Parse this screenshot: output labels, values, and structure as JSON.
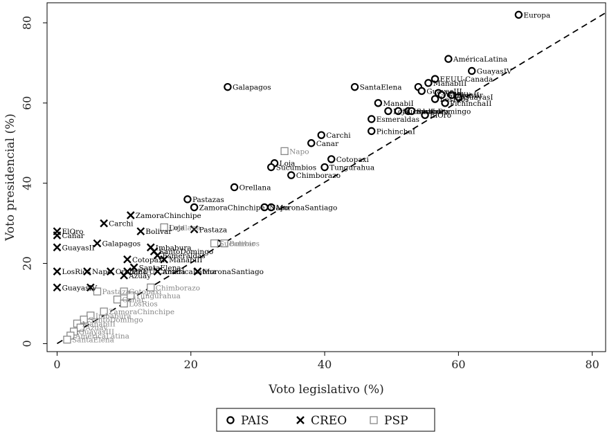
{
  "chart_data": {
    "type": "scatter",
    "xlabel": "Voto legislativo (%)",
    "ylabel": "Voto presidencial (%)",
    "xlim": [
      -1.5,
      82
    ],
    "ylim": [
      -2,
      85
    ],
    "xticks": [
      0,
      20,
      40,
      60,
      80
    ],
    "yticks": [
      0,
      20,
      40,
      60,
      80
    ],
    "grid": false,
    "legend_position": "bottom",
    "reference_line": {
      "style": "dashed",
      "from": [
        0,
        0
      ],
      "to": [
        82,
        82.5
      ]
    },
    "series": [
      {
        "name": "PAIS",
        "marker": "circle",
        "color": "#000000",
        "points": [
          {
            "x": 69,
            "y": 82,
            "label": "Europa"
          },
          {
            "x": 58.5,
            "y": 71,
            "label": "AméricaLatina"
          },
          {
            "x": 62,
            "y": 68,
            "label": "GuayasIV"
          },
          {
            "x": 25.5,
            "y": 64,
            "label": "Galapagos"
          },
          {
            "x": 44.5,
            "y": 64,
            "label": "SantaElena"
          },
          {
            "x": 56.5,
            "y": 66,
            "label": "EEUU-Canada"
          },
          {
            "x": 55.5,
            "y": 65,
            "label": "ManabiII"
          },
          {
            "x": 54,
            "y": 64,
            "label": ""
          },
          {
            "x": 54.5,
            "y": 63,
            "label": "GuayasIII"
          },
          {
            "x": 57,
            "y": 62.5,
            "label": "Azuay"
          },
          {
            "x": 57.5,
            "y": 62,
            "label": "GuayasII"
          },
          {
            "x": 59,
            "y": 62,
            "label": "Bolivar"
          },
          {
            "x": 60,
            "y": 61.5,
            "label": "GuayasI"
          },
          {
            "x": 56.5,
            "y": 61,
            "label": "LosRios"
          },
          {
            "x": 58,
            "y": 60,
            "label": "PichinchaII"
          },
          {
            "x": 48,
            "y": 60,
            "label": "ManabiI"
          },
          {
            "x": 49.5,
            "y": 58,
            "label": "Loja"
          },
          {
            "x": 51,
            "y": 58,
            "label": "Sucumbios"
          },
          {
            "x": 52.5,
            "y": 58,
            "label": "Imbabura"
          },
          {
            "x": 53,
            "y": 58,
            "label": "SantoDomingo"
          },
          {
            "x": 55,
            "y": 57,
            "label": "ElOro"
          },
          {
            "x": 47,
            "y": 56,
            "label": "Esmeraldas"
          },
          {
            "x": 47,
            "y": 53,
            "label": "PichinchaI"
          },
          {
            "x": 39.5,
            "y": 52,
            "label": "Carchi"
          },
          {
            "x": 38,
            "y": 50,
            "label": "Canar"
          },
          {
            "x": 32.5,
            "y": 45,
            "label": "Loja"
          },
          {
            "x": 32,
            "y": 44,
            "label": "Sucumbios"
          },
          {
            "x": 41,
            "y": 46,
            "label": "Cotopaxi"
          },
          {
            "x": 40,
            "y": 44,
            "label": "Tungurahua"
          },
          {
            "x": 35,
            "y": 42,
            "label": "Chimborazo"
          },
          {
            "x": 26.5,
            "y": 39,
            "label": "Orellana"
          },
          {
            "x": 19.5,
            "y": 36,
            "label": "Pastazas"
          },
          {
            "x": 20.5,
            "y": 34,
            "label": "ZamoraChinchipe"
          },
          {
            "x": 31,
            "y": 34,
            "label": "Napo"
          },
          {
            "x": 32,
            "y": 34,
            "label": "MoronaSantiago"
          },
          {
            "x": 24,
            "y": 25,
            "label": ""
          }
        ]
      },
      {
        "name": "CREO",
        "marker": "x",
        "color": "#000000",
        "points": [
          {
            "x": 11,
            "y": 32,
            "label": "ZamoraChinchipe"
          },
          {
            "x": 7,
            "y": 30,
            "label": "Carchi"
          },
          {
            "x": 16,
            "y": 29,
            "label": "Loja"
          },
          {
            "x": 20.5,
            "y": 28.5,
            "label": "Pastaza"
          },
          {
            "x": 12.5,
            "y": 28,
            "label": "Bolivar"
          },
          {
            "x": 0,
            "y": 28,
            "label": "ElOro"
          },
          {
            "x": 0,
            "y": 27,
            "label": "Cañar"
          },
          {
            "x": 6,
            "y": 25,
            "label": "Galapagos"
          },
          {
            "x": 0,
            "y": 24,
            "label": "GuayasII"
          },
          {
            "x": 14,
            "y": 24,
            "label": "Imbabura"
          },
          {
            "x": 14.5,
            "y": 23,
            "label": "SantoDomingo"
          },
          {
            "x": 15,
            "y": 22,
            "label": "Esmeraldas"
          },
          {
            "x": 16,
            "y": 21,
            "label": "ManabiII"
          },
          {
            "x": 10.5,
            "y": 21,
            "label": "Cotopaxi"
          },
          {
            "x": 11.5,
            "y": 19,
            "label": "SantaElena"
          },
          {
            "x": 10.5,
            "y": 18,
            "label": "EEUU-Canadá"
          },
          {
            "x": 0,
            "y": 18,
            "label": "LosRios"
          },
          {
            "x": 4.5,
            "y": 18,
            "label": "Napo"
          },
          {
            "x": 8,
            "y": 18,
            "label": "Orellana"
          },
          {
            "x": 10,
            "y": 17,
            "label": "Azuay"
          },
          {
            "x": 15,
            "y": 18,
            "label": "AméricaLatina"
          },
          {
            "x": 21,
            "y": 18,
            "label": "MoronaSantiago"
          },
          {
            "x": 0,
            "y": 14,
            "label": "GuayasIV"
          },
          {
            "x": 5,
            "y": 14,
            "label": ""
          }
        ]
      },
      {
        "name": "PSP",
        "marker": "square",
        "color": "#888888",
        "points": [
          {
            "x": 34,
            "y": 48,
            "label": "Napo"
          },
          {
            "x": 16,
            "y": 29,
            "label": "Orellana"
          },
          {
            "x": 23.5,
            "y": 25,
            "label": "Sucumbios"
          },
          {
            "x": 25,
            "y": 25,
            "label": "Bolivar"
          },
          {
            "x": 14,
            "y": 14,
            "label": "Chimborazo"
          },
          {
            "x": 6,
            "y": 13,
            "label": "Pastaza"
          },
          {
            "x": 10,
            "y": 13,
            "label": "Cotopaxi"
          },
          {
            "x": 11,
            "y": 12,
            "label": "Tungurahua"
          },
          {
            "x": 9,
            "y": 11,
            "label": "Cañar"
          },
          {
            "x": 10,
            "y": 10,
            "label": "LosRios"
          },
          {
            "x": 7,
            "y": 8,
            "label": "ZamoraChinchipe"
          },
          {
            "x": 5,
            "y": 7,
            "label": "Imbabura"
          },
          {
            "x": 4,
            "y": 6,
            "label": "SantoDomingo"
          },
          {
            "x": 3,
            "y": 5,
            "label": "ManabiII"
          },
          {
            "x": 3.5,
            "y": 4,
            "label": "Azuay"
          },
          {
            "x": 2.5,
            "y": 3,
            "label": "GuayasIII"
          },
          {
            "x": 2,
            "y": 2,
            "label": "AméricaLatina"
          },
          {
            "x": 1.5,
            "y": 1,
            "label": "SantaElena"
          }
        ]
      }
    ]
  }
}
